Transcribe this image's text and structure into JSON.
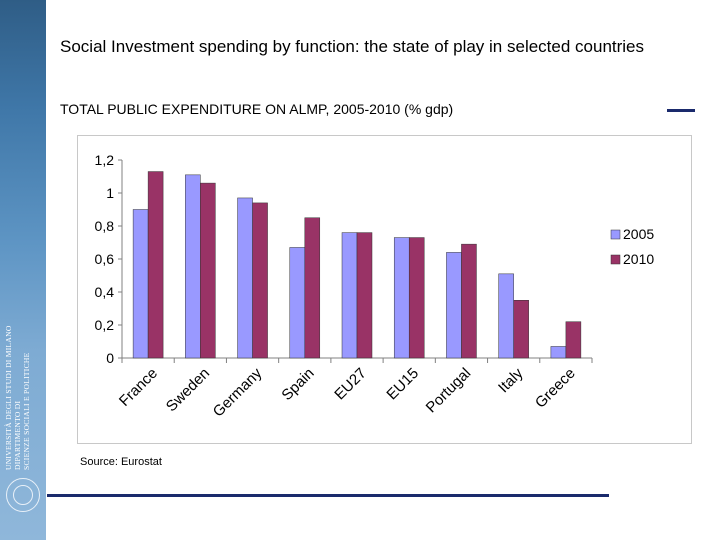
{
  "title": "Social Investment spending by function: the state of play in selected countries",
  "subtitle": "TOTAL PUBLIC EXPENDITURE ON ALMP, 2005-2010 (% gdp)",
  "source": "Source: Eurostat",
  "sidebar": {
    "line1": "UNIVERSITÀ DEGLI STUDI DI MILANO",
    "line2": "DIPARTIMENTO DI",
    "line3": "SCIENZE SOCIALI E POLITICHE"
  },
  "colors": {
    "series_2005": "#9999ff",
    "series_2010": "#993366",
    "accent": "#1a2a6c"
  },
  "chart_data": {
    "type": "bar",
    "title": "",
    "xlabel": "",
    "ylabel": "",
    "categories": [
      "France",
      "Sweden",
      "Germany",
      "Spain",
      "EU27",
      "EU15",
      "Portugal",
      "Italy",
      "Greece"
    ],
    "series": [
      {
        "name": "2005",
        "values": [
          0.9,
          1.11,
          0.97,
          0.67,
          0.76,
          0.73,
          0.64,
          0.51,
          0.07
        ]
      },
      {
        "name": "2010",
        "values": [
          1.13,
          1.06,
          0.94,
          0.85,
          0.76,
          0.73,
          0.69,
          0.35,
          0.22
        ]
      }
    ],
    "ylim": [
      0,
      1.2
    ],
    "yticks": [
      "0",
      "0,2",
      "0,4",
      "0,6",
      "0,8",
      "1",
      "1,2"
    ],
    "ytick_values": [
      0,
      0.2,
      0.4,
      0.6,
      0.8,
      1.0,
      1.2
    ],
    "legend": "right",
    "grid": false
  }
}
